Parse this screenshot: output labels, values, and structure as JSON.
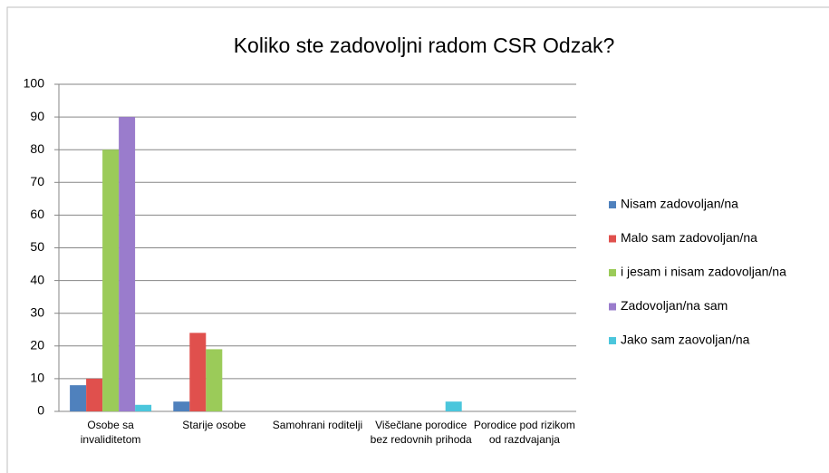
{
  "chart_data": {
    "type": "bar",
    "title": "Koliko ste zadovoljni radom CSR Odzak?",
    "categories": [
      "Osobe sa invaliditetom",
      "Starije osobe",
      "Samohrani roditelji",
      "Višečlane porodice bez redovnih prihoda",
      "Porodice pod rizikom od razdvajanja"
    ],
    "series": [
      {
        "name": "Nisam zadovoljan/na",
        "color": "#4f81bd",
        "values": [
          8,
          3,
          0,
          0,
          0
        ]
      },
      {
        "name": "Malo sam zadovoljan/na",
        "color": "#e0504d",
        "values": [
          10,
          24,
          0,
          0,
          0
        ]
      },
      {
        "name": "i jesam i nisam zadovoljan/na",
        "color": "#9bcb59",
        "values": [
          80,
          19,
          0,
          0,
          0
        ]
      },
      {
        "name": "Zadovoljan/na sam",
        "color": "#9a7ccc",
        "values": [
          90,
          0,
          0,
          0,
          0
        ]
      },
      {
        "name": "Jako sam zaovoljan/na",
        "color": "#4bc6dc",
        "values": [
          2,
          0,
          0,
          3,
          0
        ]
      }
    ],
    "ylim": [
      0,
      100
    ],
    "yticks": [
      0,
      10,
      20,
      30,
      40,
      50,
      60,
      70,
      80,
      90,
      100
    ],
    "grid": true,
    "legend": "right"
  }
}
